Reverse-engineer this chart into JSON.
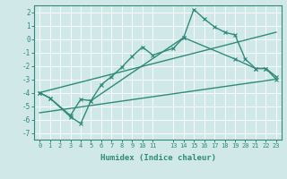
{
  "xlabel": "Humidex (Indice chaleur)",
  "line_color": "#2e8b7a",
  "bg_color": "#d0e8e8",
  "grid_color": "#ffffff",
  "xlim": [
    -0.5,
    23.5
  ],
  "ylim": [
    -7.5,
    2.5
  ],
  "yticks": [
    2,
    1,
    0,
    -1,
    -2,
    -3,
    -4,
    -5,
    -6,
    -7
  ],
  "lines": [
    {
      "x": [
        0,
        1,
        3,
        4,
        5,
        6,
        7,
        8,
        9,
        10,
        11,
        13,
        14,
        15,
        16,
        17,
        18,
        19,
        20,
        21,
        22,
        23
      ],
      "y": [
        -4.0,
        -4.4,
        -5.7,
        -4.5,
        -4.6,
        -3.4,
        -2.8,
        -2.1,
        -1.3,
        -0.6,
        -1.2,
        -0.7,
        0.1,
        2.2,
        1.5,
        0.9,
        0.5,
        0.3,
        -1.5,
        -2.2,
        -2.2,
        -3.0
      ],
      "marker": "x",
      "markersize": 3,
      "linewidth": 1.0
    },
    {
      "x": [
        0,
        1,
        3,
        4,
        5,
        14,
        19,
        21,
        22,
        23
      ],
      "y": [
        -4.0,
        -4.4,
        -5.8,
        -6.3,
        -4.6,
        0.1,
        -1.5,
        -2.2,
        -2.2,
        -2.8
      ],
      "marker": "x",
      "markersize": 3,
      "linewidth": 1.0
    },
    {
      "x": [
        0,
        23
      ],
      "y": [
        -5.5,
        -3.0
      ],
      "marker": null,
      "markersize": 0,
      "linewidth": 1.0
    },
    {
      "x": [
        0,
        23
      ],
      "y": [
        -4.0,
        0.5
      ],
      "marker": null,
      "markersize": 0,
      "linewidth": 1.0
    }
  ]
}
